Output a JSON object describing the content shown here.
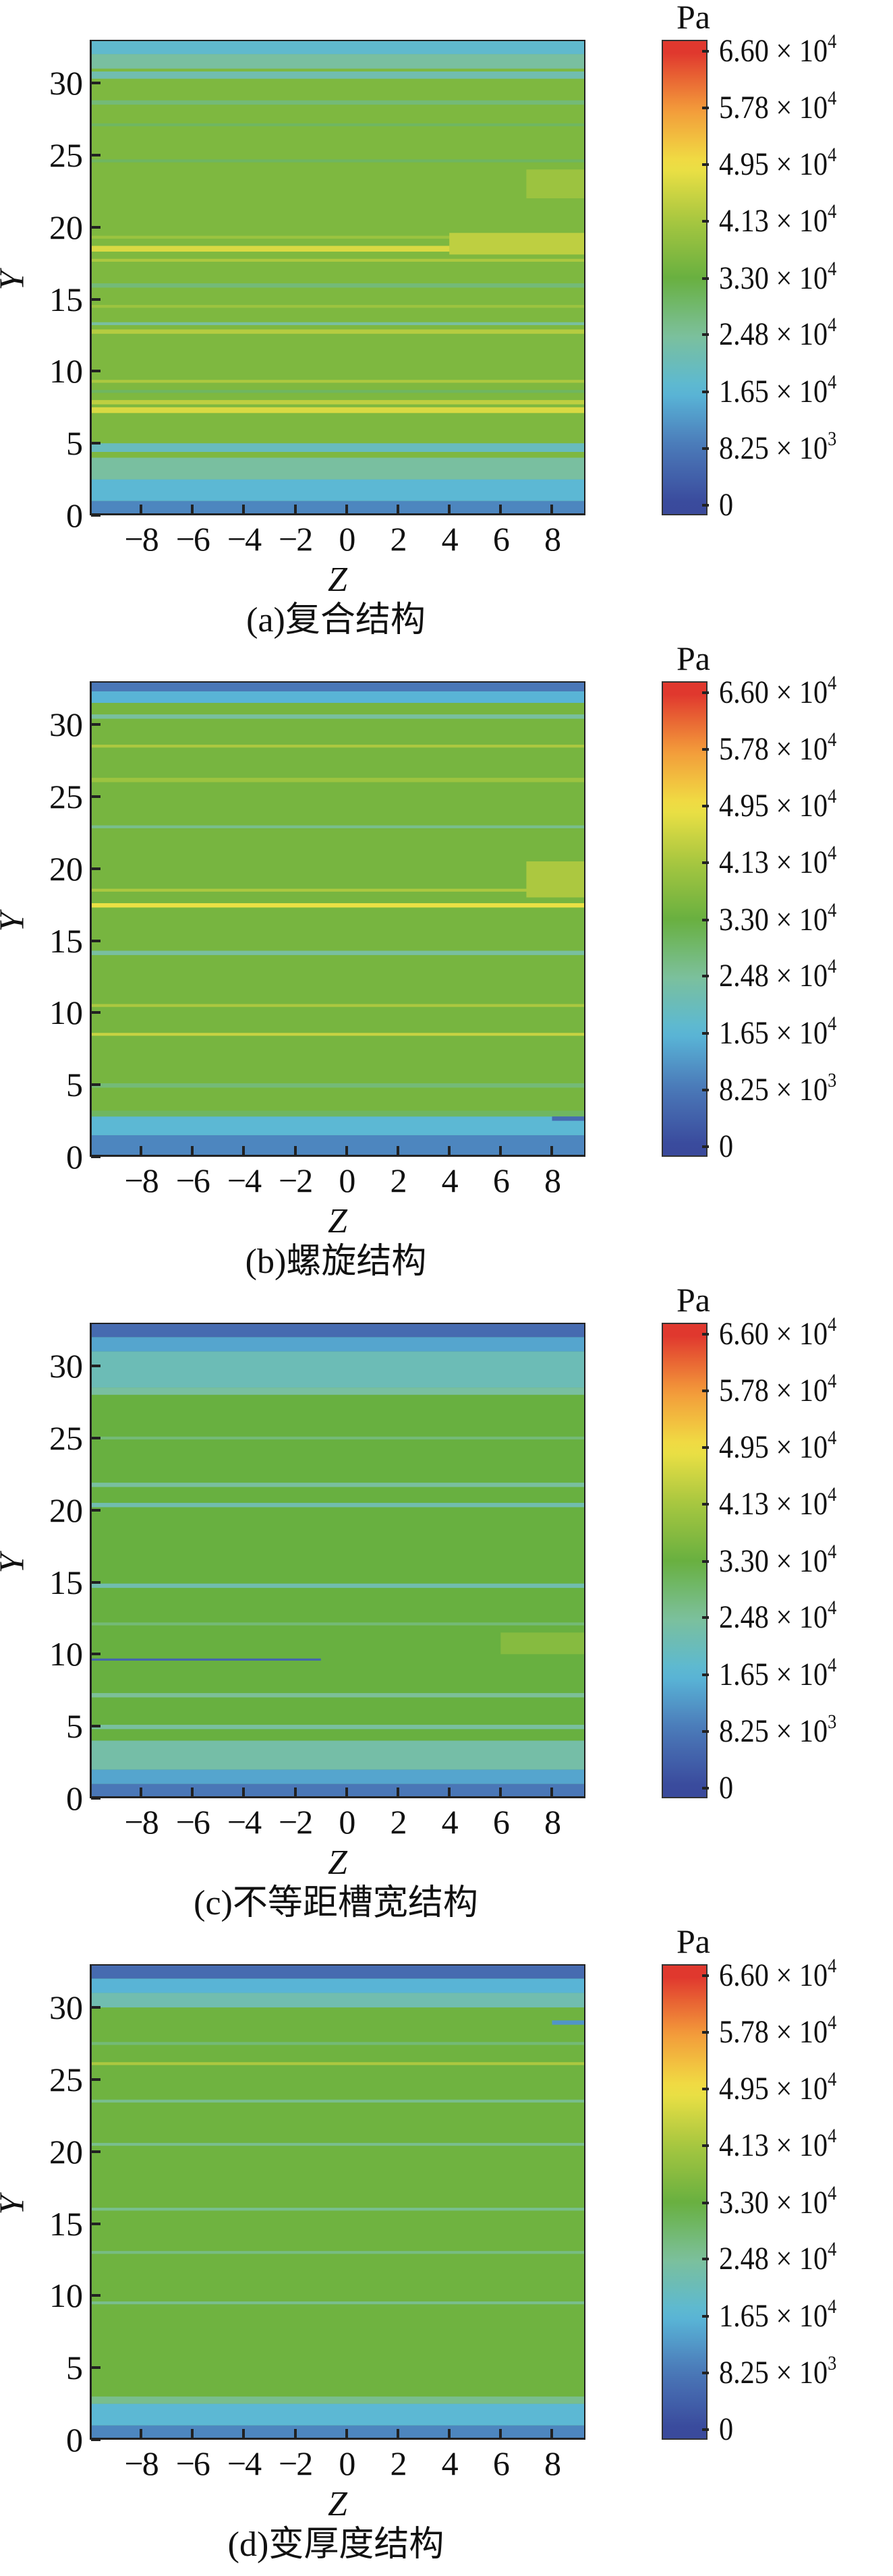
{
  "chart_data": [
    {
      "type": "heatmap",
      "title": "(a)复合结构",
      "xlabel": "Z",
      "ylabel": "Y",
      "xlim": [
        -10,
        9.3
      ],
      "ylim": [
        0,
        33
      ],
      "xticks": [
        "−8",
        "−6",
        "−4",
        "−2",
        "0",
        "2",
        "4",
        "6",
        "8"
      ],
      "xtick_values": [
        -8,
        -6,
        -4,
        -2,
        0,
        2,
        4,
        6,
        8
      ],
      "yticks": [
        "0",
        "5",
        "10",
        "15",
        "20",
        "25",
        "30"
      ],
      "ytick_values": [
        0,
        5,
        10,
        15,
        20,
        25,
        30
      ],
      "base_value": 36000,
      "bands": [
        [
          0,
          1,
          10000
        ],
        [
          1,
          2.5,
          17000
        ],
        [
          2.5,
          4,
          24000
        ],
        [
          4.4,
          5,
          20000
        ],
        [
          7.1,
          7.5,
          47000
        ],
        [
          7.7,
          8,
          44000
        ],
        [
          8.5,
          8.7,
          30000
        ],
        [
          9.2,
          9.4,
          42000
        ],
        [
          12.6,
          12.9,
          43000
        ],
        [
          13.2,
          13.4,
          24000
        ],
        [
          14.4,
          14.6,
          40000
        ],
        [
          15.8,
          16.1,
          28000
        ],
        [
          17.6,
          17.8,
          42000
        ],
        [
          18.3,
          18.7,
          47000
        ],
        [
          19.2,
          19.4,
          40000
        ],
        [
          24.5,
          24.7,
          30000
        ],
        [
          27,
          27.2,
          30000
        ],
        [
          28.5,
          28.8,
          28000
        ],
        [
          30.3,
          30.8,
          22000
        ],
        [
          31,
          32,
          24000
        ],
        [
          32,
          33,
          18000
        ]
      ],
      "segments": [
        [
          4,
          9.3,
          18.1,
          19.6,
          44000
        ],
        [
          7,
          9.3,
          22,
          24,
          40000
        ]
      ]
    },
    {
      "type": "heatmap",
      "title": "(b)螺旋结构",
      "xlabel": "Z",
      "ylabel": "Y",
      "xlim": [
        -10,
        9.3
      ],
      "ylim": [
        0,
        33
      ],
      "xticks": [
        "−8",
        "−6",
        "−4",
        "−2",
        "0",
        "2",
        "4",
        "6",
        "8"
      ],
      "xtick_values": [
        -8,
        -6,
        -4,
        -2,
        0,
        2,
        4,
        6,
        8
      ],
      "yticks": [
        "0",
        "5",
        "10",
        "15",
        "20",
        "25",
        "30"
      ],
      "ytick_values": [
        0,
        5,
        10,
        15,
        20,
        25,
        30
      ],
      "base_value": 35000,
      "bands": [
        [
          0,
          1.5,
          10000
        ],
        [
          1.5,
          2.8,
          17000
        ],
        [
          2.8,
          3.2,
          30000
        ],
        [
          4.8,
          5.1,
          28000
        ],
        [
          8.4,
          8.6,
          45000
        ],
        [
          10.4,
          10.6,
          42000
        ],
        [
          14,
          14.3,
          24000
        ],
        [
          17.3,
          17.6,
          49000
        ],
        [
          18.4,
          18.6,
          42000
        ],
        [
          22.8,
          23,
          26000
        ],
        [
          26,
          26.3,
          40000
        ],
        [
          28.4,
          28.6,
          42000
        ],
        [
          30.4,
          30.7,
          24000
        ],
        [
          31.5,
          32.3,
          16000
        ],
        [
          32.3,
          33,
          8000
        ]
      ],
      "segments": [
        [
          7,
          9.3,
          18,
          20.5,
          42000
        ],
        [
          8,
          9.3,
          2.5,
          2.8,
          6000
        ]
      ]
    },
    {
      "type": "heatmap",
      "title": "(c)不等距槽宽结构",
      "xlabel": "Z",
      "ylabel": "Y",
      "xlim": [
        -10,
        9.3
      ],
      "ylim": [
        0,
        33
      ],
      "xticks": [
        "−8",
        "−6",
        "−4",
        "−2",
        "0",
        "2",
        "4",
        "6",
        "8"
      ],
      "xtick_values": [
        -8,
        -6,
        -4,
        -2,
        0,
        2,
        4,
        6,
        8
      ],
      "yticks": [
        "0",
        "5",
        "10",
        "15",
        "20",
        "25",
        "30"
      ],
      "ytick_values": [
        0,
        5,
        10,
        15,
        20,
        25,
        30
      ],
      "base_value": 33000,
      "bands": [
        [
          0,
          1,
          8000
        ],
        [
          1,
          2,
          14000
        ],
        [
          2,
          4,
          23000
        ],
        [
          4.8,
          5.1,
          24000
        ],
        [
          7,
          7.3,
          25000
        ],
        [
          12,
          12.2,
          28000
        ],
        [
          14.6,
          14.9,
          22000
        ],
        [
          20.2,
          20.5,
          22000
        ],
        [
          21.6,
          21.9,
          24000
        ],
        [
          24.9,
          25.1,
          28000
        ],
        [
          28,
          28.5,
          24000
        ],
        [
          28.5,
          31,
          21000
        ],
        [
          31,
          32,
          14000
        ],
        [
          32,
          33,
          6000
        ]
      ],
      "segments": [
        [
          -10,
          -1,
          9.55,
          9.7,
          5000
        ],
        [
          6,
          9.3,
          10,
          11.5,
          37000
        ]
      ]
    },
    {
      "type": "heatmap",
      "title": "(d)变厚度结构",
      "xlabel": "Z",
      "ylabel": "Y",
      "xlim": [
        -10,
        9.3
      ],
      "ylim": [
        0,
        33
      ],
      "xticks": [
        "−8",
        "−6",
        "−4",
        "−2",
        "0",
        "2",
        "4",
        "6",
        "8"
      ],
      "xtick_values": [
        -8,
        -6,
        -4,
        -2,
        0,
        2,
        4,
        6,
        8
      ],
      "yticks": [
        "0",
        "5",
        "10",
        "15",
        "20",
        "25",
        "30"
      ],
      "ytick_values": [
        0,
        5,
        10,
        15,
        20,
        25,
        30
      ],
      "base_value": 34000,
      "bands": [
        [
          0,
          1,
          10000
        ],
        [
          1,
          2.5,
          17000
        ],
        [
          2.5,
          3,
          26000
        ],
        [
          9.4,
          9.6,
          26000
        ],
        [
          12.9,
          13.1,
          27000
        ],
        [
          15.9,
          16.1,
          26000
        ],
        [
          20.4,
          20.6,
          26000
        ],
        [
          23.4,
          23.6,
          26000
        ],
        [
          26,
          26.2,
          42000
        ],
        [
          27.4,
          27.6,
          28000
        ],
        [
          30,
          31,
          22000
        ],
        [
          31,
          32,
          16000
        ],
        [
          32,
          33,
          6000
        ]
      ],
      "segments": [
        [
          8,
          9.3,
          28.8,
          29.1,
          12000
        ]
      ]
    }
  ],
  "colorbar": {
    "unit": "Pa",
    "range": [
      -1500,
      67700
    ],
    "ticks": [
      {
        "value": 66000,
        "mantissa": "6.60",
        "times": "×",
        "base": "10",
        "exp": "4"
      },
      {
        "value": 57800,
        "mantissa": "5.78",
        "times": "×",
        "base": "10",
        "exp": "4"
      },
      {
        "value": 49500,
        "mantissa": "4.95",
        "times": "×",
        "base": "10",
        "exp": "4"
      },
      {
        "value": 41300,
        "mantissa": "4.13",
        "times": "×",
        "base": "10",
        "exp": "4"
      },
      {
        "value": 33000,
        "mantissa": "3.30",
        "times": "×",
        "base": "10",
        "exp": "4"
      },
      {
        "value": 24800,
        "mantissa": "2.48",
        "times": "×",
        "base": "10",
        "exp": "4"
      },
      {
        "value": 16500,
        "mantissa": "1.65",
        "times": "×",
        "base": "10",
        "exp": "4"
      },
      {
        "value": 8250,
        "mantissa": "8.25",
        "times": "×",
        "base": "10",
        "exp": "3"
      },
      {
        "value": 0,
        "mantissa": "0",
        "times": "",
        "base": "",
        "exp": ""
      }
    ],
    "colormap": [
      [
        0,
        "#3a4a9c"
      ],
      [
        8250,
        "#4a78b8"
      ],
      [
        16500,
        "#5ab8d8"
      ],
      [
        24800,
        "#7cc09a"
      ],
      [
        33000,
        "#68b040"
      ],
      [
        41300,
        "#a6c640"
      ],
      [
        49500,
        "#f0e244"
      ],
      [
        57800,
        "#f39a3a"
      ],
      [
        66000,
        "#e0382e"
      ]
    ]
  }
}
